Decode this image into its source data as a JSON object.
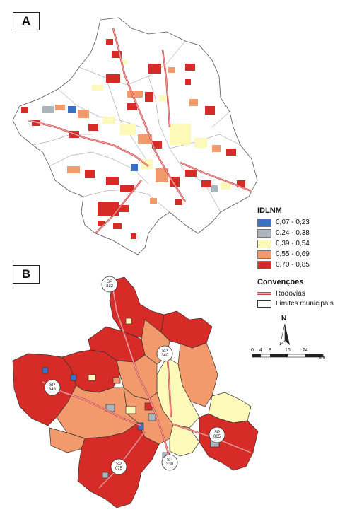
{
  "panels": {
    "a_label": "A",
    "b_label": "B"
  },
  "legend": {
    "title": "IDLNM",
    "classes": [
      {
        "label": "0,07 - 0,23",
        "color": "#3a6fc4"
      },
      {
        "label": "0,24 - 0,38",
        "color": "#a9b4bd"
      },
      {
        "label": "0,39 - 0,54",
        "color": "#fdf9b8"
      },
      {
        "label": "0,55 - 0,69",
        "color": "#f39a6c"
      },
      {
        "label": "0,70 - 0,85",
        "color": "#d62b27"
      }
    ]
  },
  "conventions": {
    "title": "Convenções",
    "roads_label": "Rodovias",
    "municipal_limits_label": "Limites municipais"
  },
  "north_arrow": {
    "label": "N"
  },
  "scale_bar": {
    "ticks": [
      "0",
      "4",
      "8",
      "16",
      "24"
    ],
    "unit": "km"
  },
  "highways": [
    {
      "label": "SP 332"
    },
    {
      "label": "SP 340"
    },
    {
      "label": "SP 348"
    },
    {
      "label": "SP 065"
    },
    {
      "label": "SP 075"
    },
    {
      "label": "SP 330"
    }
  ],
  "colors": {
    "road_fill": "#f0a9a9",
    "road_edge": "#c44444",
    "boundary": "#333333",
    "background": "#ffffff"
  }
}
